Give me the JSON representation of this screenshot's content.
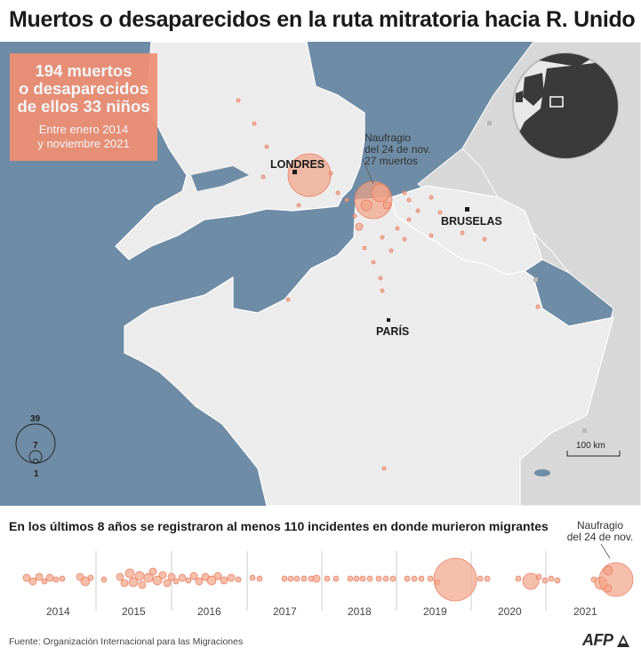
{
  "title": "Muertos o desaparecidos en la ruta mitratoria hacia R. Unido",
  "stat_box": {
    "main_line1": "194 muertos",
    "main_line2": "o desaparecidos",
    "main_line3": "de ellos 33 niños",
    "sub_line1": "Entre enero 2014",
    "sub_line2": "y noviembre 2021"
  },
  "cities": {
    "londres": "LONDRES",
    "bruselas": "BRUSELAS",
    "paris": "PARÍS"
  },
  "map_annotation": {
    "line1": "Naufragio",
    "line2": "del 24 de nov.",
    "line3": "27 muertos"
  },
  "size_legend": {
    "large": "39",
    "medium": "7",
    "small": "1"
  },
  "scale_label": "100 km",
  "subtitle": "En los últimos 8 años se registraron al menos 110 incidentes en donde murieron migrantes",
  "timeline_annotation": {
    "line1": "Naufragio",
    "line2": "del 24 de nov."
  },
  "years": [
    "2014",
    "2015",
    "2016",
    "2017",
    "2018",
    "2019",
    "2020",
    "2021"
  ],
  "source": "Fuente: Organización Internacional para las Migraciones",
  "logo": "AFP",
  "colors": {
    "sea": "#6e8ca6",
    "uk_france": "#ececec",
    "other_land": "#d8d8d8",
    "circle_fill": "#f2a488",
    "circle_stroke": "#e9795a",
    "stat_box": "#f08f73"
  }
}
